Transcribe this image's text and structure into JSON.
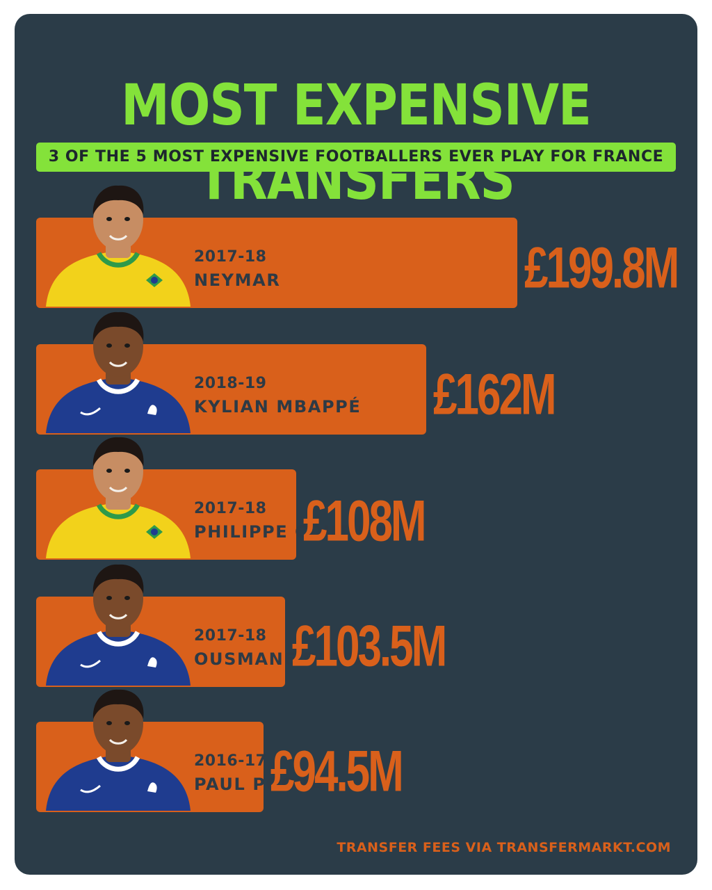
{
  "title": "MOST EXPENSIVE TRANSFERS",
  "subtitle": "3 OF THE 5 MOST EXPENSIVE FOOTBALLERS EVER PLAY FOR FRANCE",
  "footnote": "TRANSFER FEES VIA TRANSFERMARKT.COM",
  "colors": {
    "background": "#2b3c48",
    "accent_green": "#84e23a",
    "bar_orange": "#d9601b",
    "label_dark": "#2d3a45",
    "brazil_yellow": "#f2d21b",
    "france_blue": "#1f3c8f"
  },
  "chart_data": {
    "type": "bar",
    "orientation": "horizontal",
    "title": "MOST EXPENSIVE TRANSFERS",
    "subtitle": "3 OF THE 5 MOST EXPENSIVE FOOTBALLERS EVER PLAY FOR FRANCE",
    "unit": "£M",
    "categories": [
      "NEYMAR",
      "KYLIAN MBAPPÉ",
      "PHILIPPE COUTINHO",
      "OUSMANE DEMBÉLÉ",
      "PAUL POGBA"
    ],
    "seasons": [
      "2017-18",
      "2018-19",
      "2017-18",
      "2017-18",
      "2016-17"
    ],
    "values": [
      199.8,
      162,
      108,
      103.5,
      94.5
    ],
    "value_labels": [
      "£199.8M",
      "£162M",
      "£108M",
      "£103.5M",
      "£94.5M"
    ],
    "kits": [
      "brazil",
      "france",
      "brazil",
      "france",
      "france"
    ],
    "grid": false,
    "legend": "none"
  }
}
